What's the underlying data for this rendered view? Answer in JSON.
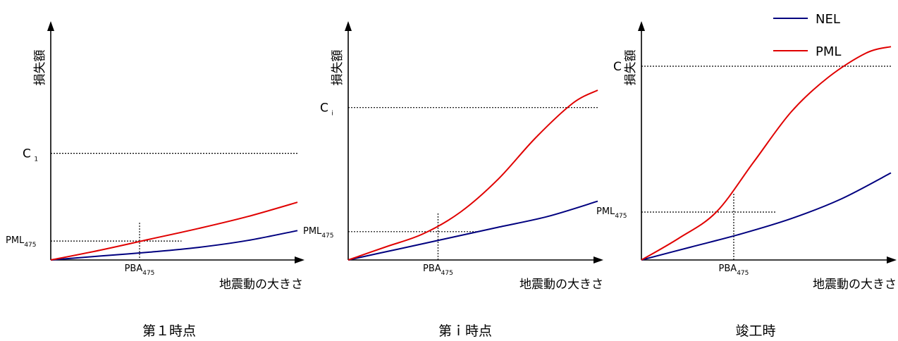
{
  "legend": {
    "items": [
      {
        "label": "NEL",
        "color": "#00007f"
      },
      {
        "label": "PML",
        "color": "#e00000"
      }
    ]
  },
  "chart_data": [
    {
      "type": "line",
      "caption": "第１時点",
      "ylabel": "損失額",
      "xlabel": "地震動の大きさ",
      "c_label": "C",
      "c_sub": "1",
      "c_level": 0.49,
      "pml_label": "PML",
      "pml_sub": "475",
      "pml_level": 0.087,
      "pba_label": "PBA",
      "pba_sub": "475",
      "pba_pos": 0.36,
      "series": [
        {
          "name": "NEL",
          "x": [
            0,
            0.2,
            0.4,
            0.6,
            0.8,
            1.0
          ],
          "y": [
            0,
            0.018,
            0.036,
            0.058,
            0.09,
            0.135
          ]
        },
        {
          "name": "PML",
          "x": [
            0,
            0.2,
            0.4,
            0.6,
            0.8,
            1.0
          ],
          "y": [
            0,
            0.045,
            0.095,
            0.145,
            0.2,
            0.265
          ]
        }
      ]
    },
    {
      "type": "line",
      "caption": "第ｉ時点",
      "ylabel": "損失額",
      "xlabel": "地震動の大きさ",
      "c_label": "C",
      "c_sub": "i",
      "c_level": 0.7,
      "pml_label": "PML",
      "pml_sub": "475",
      "pml_level": 0.13,
      "pba_label": "PBA",
      "pba_sub": "475",
      "pba_pos": 0.36,
      "series": [
        {
          "name": "NEL",
          "x": [
            0,
            0.2,
            0.4,
            0.6,
            0.8,
            1.0
          ],
          "y": [
            0,
            0.05,
            0.1,
            0.15,
            0.2,
            0.27
          ]
        },
        {
          "name": "PML",
          "x": [
            0,
            0.15,
            0.3,
            0.45,
            0.6,
            0.75,
            0.9,
            1.0
          ],
          "y": [
            0,
            0.06,
            0.12,
            0.22,
            0.37,
            0.56,
            0.72,
            0.78
          ]
        }
      ]
    },
    {
      "type": "line",
      "caption": "竣工時",
      "ylabel": "損失額",
      "xlabel": "地震動の大きさ",
      "c_label": "C",
      "c_sub": "",
      "c_level": 0.89,
      "pml_label": "PML",
      "pml_sub": "475",
      "pml_level": 0.22,
      "pba_label": "PBA",
      "pba_sub": "475",
      "pba_pos": 0.37,
      "series": [
        {
          "name": "NEL",
          "x": [
            0,
            0.2,
            0.4,
            0.6,
            0.8,
            1.0
          ],
          "y": [
            0,
            0.06,
            0.12,
            0.19,
            0.28,
            0.4
          ]
        },
        {
          "name": "PML",
          "x": [
            0,
            0.15,
            0.3,
            0.45,
            0.6,
            0.75,
            0.9,
            1.0
          ],
          "y": [
            0,
            0.1,
            0.22,
            0.45,
            0.68,
            0.84,
            0.95,
            0.98
          ]
        }
      ]
    }
  ]
}
